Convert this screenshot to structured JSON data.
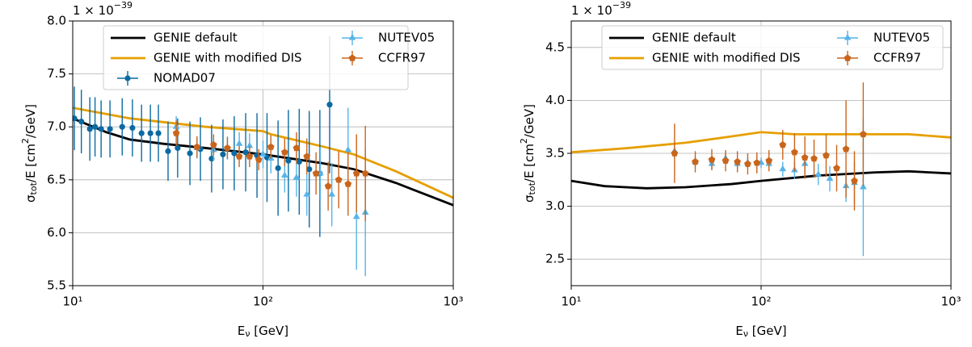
{
  "chart_data": [
    {
      "type": "errorbar",
      "offset_text": [
        "1 × 10",
        "−39"
      ],
      "xlabel": [
        "E",
        "ν",
        " [GeV]"
      ],
      "ylabel": [
        "σ",
        "tot",
        "/E [cm",
        "2",
        "/GeV]"
      ],
      "xscale": "log",
      "xlim": [
        10,
        1000
      ],
      "xticks": [
        {
          "value": 10,
          "label": "10¹"
        },
        {
          "value": 100,
          "label": "10²"
        },
        {
          "value": 1000,
          "label": "10³"
        }
      ],
      "ylim": [
        5.5,
        8.0
      ],
      "yticks": [
        5.5,
        {
          "value": 6,
          "label": "6.0"
        },
        6.5,
        {
          "value": 7,
          "label": "7.0"
        },
        7.5,
        {
          "value": 8,
          "label": "8.0"
        }
      ],
      "grid": true,
      "legend": "upper center",
      "series": [
        {
          "name": "GENIE default",
          "color": "#000000",
          "marker": "line",
          "x": [
            10,
            15,
            20,
            30,
            50,
            100,
            200,
            300,
            500,
            1000
          ],
          "values": [
            7.08,
            6.95,
            6.88,
            6.84,
            6.8,
            6.74,
            6.66,
            6.6,
            6.47,
            6.26
          ]
        },
        {
          "name": "GENIE with modified DIS",
          "color": "#e69f00",
          "marker": "line",
          "x": [
            10,
            20,
            50,
            100,
            110,
            200,
            300,
            500,
            1000
          ],
          "values": [
            7.18,
            7.08,
            7.0,
            6.96,
            6.93,
            6.82,
            6.74,
            6.58,
            6.33
          ]
        },
        {
          "name": "NOMAD07",
          "color": "#0b6aa2",
          "marker": "circle",
          "x": [
            10.2,
            11.1,
            12.3,
            13.1,
            14.1,
            15.7,
            18.2,
            20.6,
            23,
            25.6,
            28.2,
            31.7,
            35.6,
            41.3,
            46.9,
            53.7,
            61.6,
            70.6,
            81.1,
            93,
            105,
            120,
            136,
            155,
            175,
            199,
            224
          ],
          "values": [
            7.08,
            7.05,
            6.98,
            7.0,
            6.98,
            6.98,
            7.0,
            6.99,
            6.94,
            6.94,
            6.94,
            6.77,
            6.8,
            6.75,
            6.79,
            6.7,
            6.74,
            6.75,
            6.76,
            6.73,
            6.71,
            6.61,
            6.68,
            6.67,
            6.6,
            6.56,
            7.21
          ],
          "errors": [
            0.3,
            0.3,
            0.3,
            0.28,
            0.27,
            0.27,
            0.27,
            0.27,
            0.27,
            0.27,
            0.27,
            0.28,
            0.28,
            0.3,
            0.3,
            0.32,
            0.33,
            0.35,
            0.37,
            0.4,
            0.42,
            0.45,
            0.48,
            0.5,
            0.55,
            0.6,
            0.65
          ]
        },
        {
          "name": "NUTEV05",
          "color": "#56b4e9",
          "marker": "triangle",
          "x": [
            35,
            45,
            55,
            65,
            75,
            85,
            100,
            110,
            130,
            150,
            170,
            200,
            230,
            280,
            310,
            345
          ],
          "values": [
            7.0,
            6.8,
            6.78,
            6.8,
            6.84,
            6.82,
            6.74,
            6.7,
            6.54,
            6.52,
            6.36,
            6.56,
            6.36,
            6.78,
            6.15,
            6.19
          ],
          "errors": [
            0.1,
            0.1,
            0.1,
            0.11,
            0.11,
            0.12,
            0.13,
            0.14,
            0.16,
            0.18,
            0.2,
            0.25,
            0.3,
            0.4,
            0.5,
            0.6
          ]
        },
        {
          "name": "CCFR97",
          "color": "#c9651b",
          "marker": "pentagon",
          "x": [
            35,
            45,
            55,
            65,
            75,
            85,
            95,
            110,
            130,
            150,
            170,
            190,
            220,
            250,
            280,
            310,
            345
          ],
          "values": [
            6.94,
            6.81,
            6.83,
            6.8,
            6.72,
            6.72,
            6.69,
            6.81,
            6.76,
            6.8,
            6.72,
            6.56,
            6.44,
            6.5,
            6.46,
            6.56,
            6.56
          ],
          "errors": [
            0.12,
            0.1,
            0.1,
            0.1,
            0.1,
            0.1,
            0.1,
            0.11,
            0.13,
            0.15,
            0.17,
            0.2,
            0.23,
            0.27,
            0.3,
            0.37,
            0.45
          ]
        }
      ]
    },
    {
      "type": "errorbar",
      "offset_text": [
        "1 × 10",
        "−39"
      ],
      "xlabel": [
        "E",
        "ν",
        " [GeV]"
      ],
      "ylabel": [
        "σ",
        "tot",
        "/E [cm",
        "2",
        "/GeV]"
      ],
      "xscale": "log",
      "xlim": [
        10,
        1000
      ],
      "xticks": [
        {
          "value": 10,
          "label": "10¹"
        },
        {
          "value": 100,
          "label": "10²"
        },
        {
          "value": 1000,
          "label": "10³"
        }
      ],
      "ylim": [
        2.25,
        4.75
      ],
      "yticks": [
        2.5,
        {
          "value": 3,
          "label": "3.0"
        },
        3.5,
        {
          "value": 4,
          "label": "4.0"
        },
        4.5
      ],
      "grid": true,
      "legend": "upper center",
      "series": [
        {
          "name": "GENIE default",
          "color": "#000000",
          "marker": "line",
          "x": [
            10,
            15,
            25,
            40,
            70,
            100,
            200,
            400,
            600,
            1000
          ],
          "values": [
            3.24,
            3.19,
            3.17,
            3.18,
            3.21,
            3.24,
            3.29,
            3.32,
            3.33,
            3.31
          ]
        },
        {
          "name": "GENIE with modified DIS",
          "color": "#e69f00",
          "marker": "line",
          "x": [
            10,
            20,
            40,
            70,
            100,
            150,
            300,
            600,
            1000
          ],
          "values": [
            3.51,
            3.55,
            3.6,
            3.66,
            3.7,
            3.68,
            3.68,
            3.68,
            3.65
          ]
        },
        {
          "name": "NUTEV05",
          "color": "#56b4e9",
          "marker": "triangle",
          "x": [
            35,
            45,
            55,
            65,
            75,
            85,
            100,
            110,
            130,
            150,
            170,
            200,
            230,
            280,
            310,
            345
          ],
          "values": [
            3.52,
            3.42,
            3.4,
            3.45,
            3.4,
            3.41,
            3.41,
            3.4,
            3.35,
            3.34,
            3.4,
            3.3,
            3.26,
            3.19,
            3.22,
            3.18
          ],
          "errors": [
            0.07,
            0.05,
            0.05,
            0.05,
            0.05,
            0.05,
            0.05,
            0.06,
            0.07,
            0.08,
            0.09,
            0.1,
            0.12,
            0.15,
            0.2,
            0.65
          ]
        },
        {
          "name": "CCFR97",
          "color": "#c9651b",
          "marker": "pentagon",
          "x": [
            35,
            45,
            55,
            65,
            75,
            85,
            95,
            110,
            130,
            150,
            170,
            190,
            220,
            250,
            280,
            310,
            345
          ],
          "values": [
            3.5,
            3.42,
            3.44,
            3.43,
            3.42,
            3.4,
            3.41,
            3.43,
            3.58,
            3.51,
            3.46,
            3.45,
            3.48,
            3.36,
            3.54,
            3.24,
            3.68
          ],
          "errors": [
            0.28,
            0.1,
            0.1,
            0.1,
            0.1,
            0.1,
            0.1,
            0.1,
            0.14,
            0.18,
            0.2,
            0.18,
            0.2,
            0.22,
            0.46,
            0.28,
            0.49
          ]
        }
      ]
    }
  ]
}
